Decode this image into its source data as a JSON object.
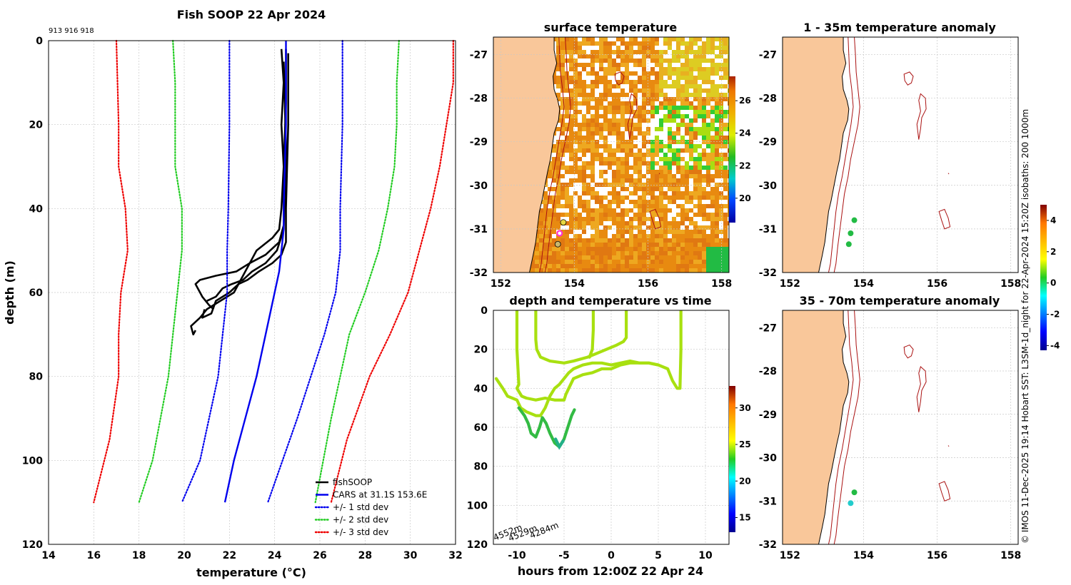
{
  "chart_data": [
    {
      "type": "line",
      "title": "Fish SOOP 22 Apr 2024",
      "subtitle": "913 916 918",
      "xlabel": "temperature (°C)",
      "ylabel": "depth (m)",
      "xlim": [
        14,
        32
      ],
      "ylim": [
        0,
        120
      ],
      "y_inverted": true,
      "xticks": [
        "14",
        "16",
        "18",
        "20",
        "22",
        "24",
        "26",
        "28",
        "30",
        "32"
      ],
      "yticks": [
        "0",
        "20",
        "40",
        "60",
        "80",
        "100",
        "120"
      ],
      "grid": true,
      "legend_position": "bottom-right",
      "legend": [
        "fishSOOP",
        "CARS at 31.1S 153.6E",
        "+/- 1 std dev",
        "+/- 2 std dev",
        "+/- 3 std dev"
      ],
      "series": [
        {
          "name": "fishSOOP",
          "color": "#000000",
          "style": "solid",
          "profiles": [
            [
              [
                24.3,
                2
              ],
              [
                24.4,
                10
              ],
              [
                24.3,
                20
              ],
              [
                24.4,
                30
              ],
              [
                24.3,
                40
              ],
              [
                24.2,
                45
              ],
              [
                23.9,
                47
              ],
              [
                23.2,
                50
              ],
              [
                22.9,
                53
              ],
              [
                22.5,
                57
              ],
              [
                22.2,
                60
              ],
              [
                21.6,
                62
              ],
              [
                21.0,
                64
              ],
              [
                20.7,
                66
              ],
              [
                20.3,
                68
              ],
              [
                20.4,
                70
              ],
              [
                20.5,
                69
              ]
            ],
            [
              [
                24.5,
                2
              ],
              [
                24.5,
                15
              ],
              [
                24.4,
                30
              ],
              [
                24.4,
                44
              ],
              [
                24.2,
                48
              ],
              [
                23.6,
                51
              ],
              [
                22.9,
                53
              ],
              [
                22.3,
                55
              ],
              [
                21.4,
                56
              ],
              [
                20.7,
                57
              ],
              [
                20.5,
                58
              ],
              [
                20.8,
                61
              ],
              [
                21.1,
                63
              ],
              [
                21.3,
                64
              ]
            ],
            [
              [
                24.6,
                3
              ],
              [
                24.6,
                20
              ],
              [
                24.5,
                40
              ],
              [
                24.5,
                48
              ],
              [
                24.3,
                51
              ],
              [
                23.9,
                53
              ],
              [
                23.3,
                55
              ],
              [
                22.8,
                57
              ],
              [
                22.4,
                58
              ],
              [
                22.0,
                60
              ],
              [
                21.7,
                61
              ],
              [
                21.4,
                62
              ],
              [
                21.2,
                65
              ],
              [
                20.8,
                66
              ],
              [
                20.9,
                64
              ]
            ],
            [
              [
                24.4,
                5
              ],
              [
                24.5,
                25
              ],
              [
                24.4,
                45
              ],
              [
                24.1,
                50
              ],
              [
                23.6,
                53
              ],
              [
                23.0,
                55
              ],
              [
                22.6,
                57
              ],
              [
                22.1,
                58
              ],
              [
                21.7,
                59
              ],
              [
                21.4,
                61
              ],
              [
                21.0,
                62
              ]
            ]
          ]
        },
        {
          "name": "CARS at 31.1S 153.6E",
          "color": "#0000ee",
          "style": "solid",
          "x": [
            24.5,
            24.5,
            24.4,
            24.4,
            24.3,
            24.2,
            24.0,
            23.6,
            23.2,
            22.7,
            22.2,
            21.8
          ],
          "y": [
            0,
            20,
            40,
            45,
            50,
            55,
            60,
            70,
            80,
            90,
            100,
            110
          ]
        },
        {
          "name": "+/- 1 std dev",
          "color": "#0000ee",
          "style": "dotted",
          "x": [
            22.0,
            22.0,
            21.95,
            21.9,
            21.9,
            21.5,
            20.7,
            19.9
          ],
          "y": [
            0,
            20,
            40,
            50,
            60,
            80,
            100,
            110
          ]
        },
        {
          "name": "+/- 1 std dev",
          "color": "#0000ee",
          "style": "dotted",
          "x": [
            27.0,
            27.0,
            26.9,
            26.9,
            26.7,
            26.2,
            25.0,
            23.7
          ],
          "y": [
            0,
            20,
            40,
            50,
            60,
            70,
            90,
            110
          ]
        },
        {
          "name": "+/- 2 std dev",
          "color": "#22cc22",
          "style": "dotted",
          "x": [
            19.5,
            19.6,
            19.6,
            19.6,
            19.9,
            19.9,
            19.7,
            19.3,
            18.6,
            18.0
          ],
          "y": [
            0,
            10,
            20,
            30,
            40,
            50,
            60,
            80,
            100,
            110
          ]
        },
        {
          "name": "+/- 2 std dev",
          "color": "#22cc22",
          "style": "dotted",
          "x": [
            29.5,
            29.4,
            29.4,
            29.3,
            29.0,
            28.6,
            28.0,
            27.3,
            26.5,
            25.8
          ],
          "y": [
            0,
            10,
            20,
            30,
            40,
            50,
            60,
            70,
            90,
            110
          ]
        },
        {
          "name": "+/- 3 std dev",
          "color": "#ee0000",
          "style": "dotted",
          "x": [
            17.0,
            17.05,
            17.1,
            17.1,
            17.4,
            17.5,
            17.2,
            17.1,
            17.1,
            16.7,
            16.0
          ],
          "y": [
            0,
            10,
            20,
            30,
            40,
            50,
            60,
            70,
            80,
            95,
            110
          ]
        },
        {
          "name": "+/- 3 std dev",
          "color": "#ee0000",
          "style": "dotted",
          "x": [
            31.9,
            31.9,
            31.6,
            31.3,
            30.9,
            30.4,
            29.9,
            29.1,
            28.2,
            27.2,
            26.5
          ],
          "y": [
            0,
            10,
            20,
            30,
            40,
            50,
            60,
            70,
            80,
            95,
            110
          ]
        }
      ]
    },
    {
      "type": "heatmap",
      "title": "surface temperature",
      "xlim": [
        151.8,
        158.2
      ],
      "ylim": [
        -32,
        -26.6
      ],
      "xticks": [
        "152",
        "154",
        "156",
        "158"
      ],
      "yticks": [
        "-27",
        "-28",
        "-29",
        "-30",
        "-31",
        "-32"
      ],
      "colorbar": {
        "min": 18.5,
        "max": 27.5,
        "ticks": [
          "20",
          "22",
          "24",
          "26"
        ]
      },
      "markers": [
        {
          "lon": 153.7,
          "lat": -30.85,
          "color": "#e6d840"
        },
        {
          "lon": 153.6,
          "lat": -31.1,
          "color": "#ff33cc",
          "ring": true
        },
        {
          "lon": 153.55,
          "lat": -31.35,
          "color": "#c8b870"
        }
      ]
    },
    {
      "type": "scatter",
      "title": "depth and temperature vs time",
      "xlabel": "hours from 12:00Z 22 Apr 24",
      "xlim": [
        -12.5,
        12.5
      ],
      "ylim": [
        0,
        120
      ],
      "y_inverted": true,
      "xticks": [
        "-10",
        "-5",
        "0",
        "5",
        "10"
      ],
      "yticks": [
        "0",
        "20",
        "40",
        "60",
        "80",
        "100",
        "120"
      ],
      "annotations": [
        "4552m",
        "4529m",
        "4284m"
      ],
      "colorbar": {
        "min": 13,
        "max": 33,
        "ticks": [
          "15",
          "20",
          "25",
          "30"
        ]
      }
    },
    {
      "type": "heatmap",
      "title": "1 - 35m temperature anomaly",
      "xlim": [
        151.8,
        158.2
      ],
      "ylim": [
        -32,
        -26.6
      ],
      "xticks": [
        "152",
        "154",
        "156",
        "158"
      ],
      "yticks": [
        "-27",
        "-28",
        "-29",
        "-30",
        "-31",
        "-32"
      ],
      "colorbar": {
        "min": -4.3,
        "max": 5,
        "ticks": [
          "-4",
          "-2",
          "0",
          "2",
          "4"
        ]
      },
      "markers": [
        {
          "lon": 153.75,
          "lat": -30.8,
          "color": "#22bb44"
        },
        {
          "lon": 153.65,
          "lat": -31.1,
          "color": "#22bb44"
        },
        {
          "lon": 153.6,
          "lat": -31.35,
          "color": "#22bb44"
        }
      ]
    },
    {
      "type": "heatmap",
      "title": "35 - 70m temperature anomaly",
      "xlim": [
        151.8,
        158.2
      ],
      "ylim": [
        -32,
        -26.6
      ],
      "xticks": [
        "152",
        "154",
        "156",
        "158"
      ],
      "yticks": [
        "-27",
        "-28",
        "-29",
        "-30",
        "-31",
        "-32"
      ],
      "markers": [
        {
          "lon": 153.75,
          "lat": -30.8,
          "color": "#22bb44"
        },
        {
          "lon": 153.65,
          "lat": -31.05,
          "color": "#22cccc"
        }
      ]
    }
  ],
  "side_note": "© IMOS 11-Dec-2025 19:14 Hobart SST: L3SM-1d_night for 22-Apr-2024 15:20Z isobaths: 200  1000m",
  "colors": {
    "land": "#f9c79a",
    "isobath": "#aa1111"
  }
}
